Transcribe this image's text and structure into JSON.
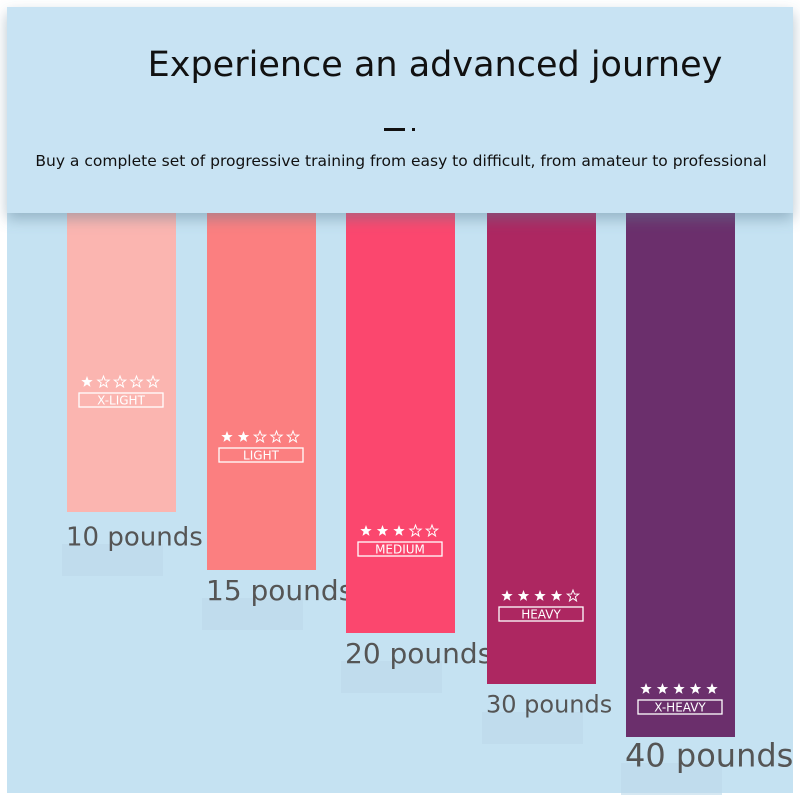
{
  "header": {
    "title": "Experience an advanced journey",
    "subtitle": "Buy a complete set of progressive training from easy to difficult, from amateur to professional"
  },
  "bands": [
    {
      "level": "X-LIGHT",
      "weight": "10 pounds",
      "rating": 1,
      "color": "#fbb5b0"
    },
    {
      "level": "LIGHT",
      "weight": "15 pounds",
      "rating": 2,
      "color": "#fb7f80"
    },
    {
      "level": "MEDIUM",
      "weight": "20 pounds",
      "rating": 3,
      "color": "#fb476e"
    },
    {
      "level": "HEAVY",
      "weight": "30 pounds",
      "rating": 4,
      "color": "#ad2761"
    },
    {
      "level": "X-HEAVY",
      "weight": "40 pounds",
      "rating": 5,
      "color": "#6b2f6c"
    }
  ]
}
